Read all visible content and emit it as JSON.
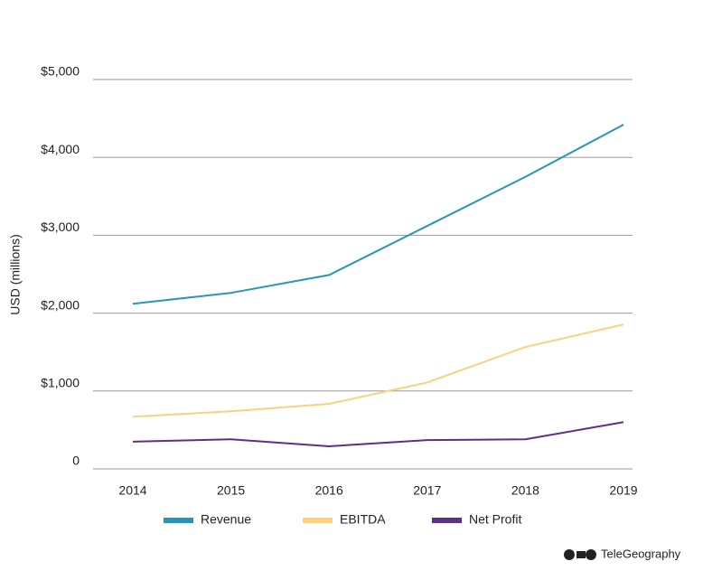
{
  "chart_data": {
    "type": "line",
    "y_label": "USD (millions)",
    "categories": [
      "2014",
      "2015",
      "2016",
      "2017",
      "2018",
      "2019"
    ],
    "series": [
      {
        "name": "Revenue",
        "color": "#2596b8",
        "values": [
          2120,
          2260,
          2490,
          3120,
          3750,
          4420
        ]
      },
      {
        "name": "EBITDA",
        "color": "#fdd17b",
        "values": [
          670,
          740,
          835,
          1110,
          1565,
          1855
        ]
      },
      {
        "name": "Net Profit",
        "color": "#5e2f86",
        "values": [
          350,
          380,
          290,
          370,
          380,
          600
        ]
      }
    ],
    "ylim": [
      0,
      5000
    ],
    "yticks": [
      0,
      {
        "value": 1000,
        "label": "$1,000"
      },
      {
        "value": 2000,
        "label": "$2,000"
      },
      {
        "value": 3000,
        "label": "$3,000"
      },
      {
        "value": 4000,
        "label": "$4,000"
      },
      {
        "value": 5000,
        "label": "$5,000"
      }
    ],
    "grid": true,
    "legend": "bottom",
    "source": "TeleGeography"
  }
}
